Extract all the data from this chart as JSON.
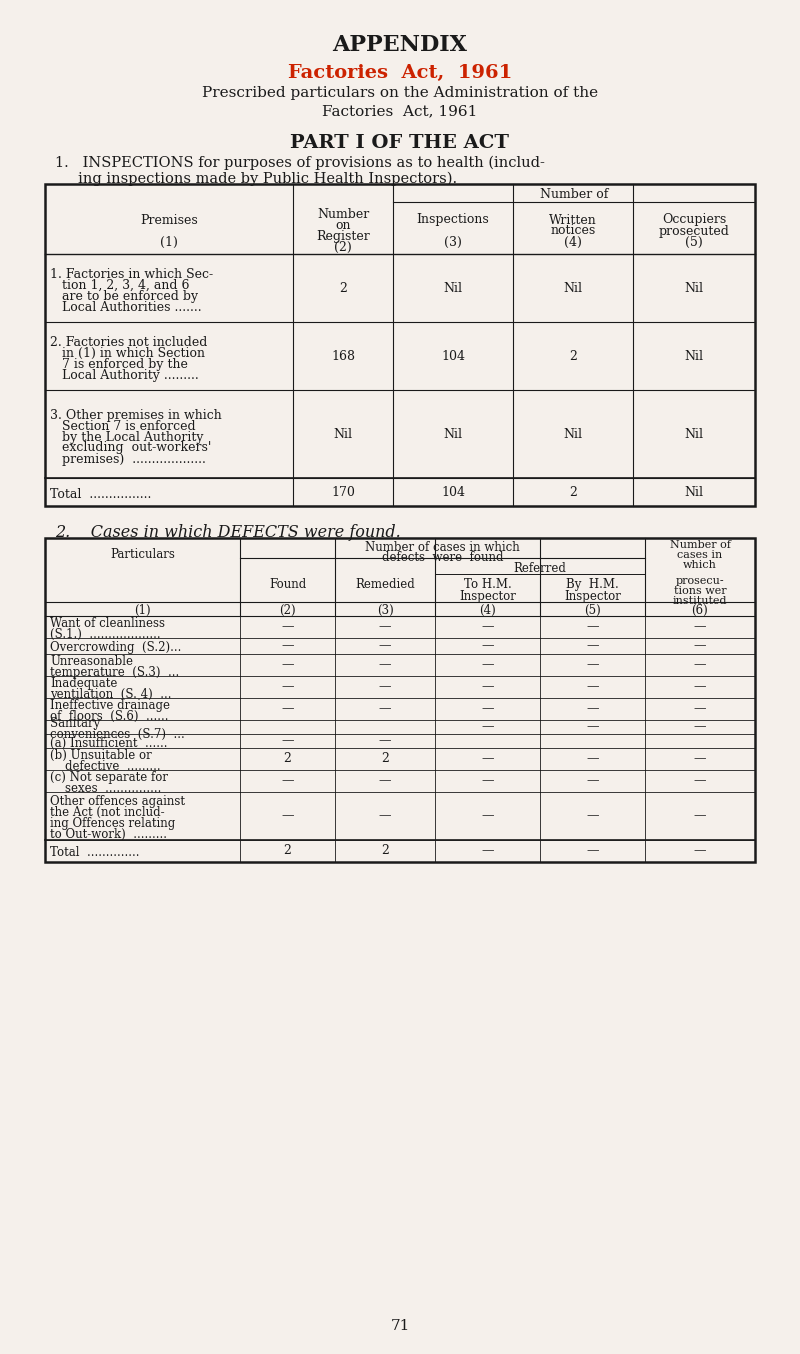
{
  "bg_color": "#f5f0eb",
  "text_color": "#1a1a1a",
  "red_color": "#cc2200",
  "title": "APPENDIX",
  "subtitle": "Factories  Act,  1961",
  "desc_line1": "Prescribed particulars on the Administration of the",
  "desc_line2": "Factories  Act, 1961",
  "part_title": "PART I OF THE ACT",
  "section1_title": "1.   INSPECTIONS for purposes of provisions as to health (includ-",
  "section1_title2": "     ing inspections made by Public Health Inspectors).",
  "table1_col_headers": [
    "Premises\n\n(1)",
    "Number\non\nRegister\n(2)",
    "Inspections\n\n(3)",
    "Written\nnotices\n(4)",
    "Occupiers\nprosecuted\n(5)"
  ],
  "table1_header_top": [
    "",
    "Number of",
    "Number of",
    "Number of",
    "Number of"
  ],
  "table1_rows": [
    [
      "1. Factories in which Sec-\n   tion 1, 2, 3, 4, and 6\n   are to be enforced by\n   Local Authorities .......",
      "2",
      "Nil",
      "Nil",
      "Nil"
    ],
    [
      "2. Factories not included\n   in (1) in which Section\n   7 is enforced by the\n   Local Authority .........",
      "168",
      "104",
      "2",
      "Nil"
    ],
    [
      "3. Other premises in which\n   Section 7 is enforced\n   by the Local Authority\n   excluding  out-workers'\n   premises)  ...................",
      "Nil",
      "Nil",
      "Nil",
      "Nil"
    ],
    [
      "Total  ................",
      "170",
      "104",
      "2",
      "Nil"
    ]
  ],
  "section2_title": "2.    Cases in which DEFECTS were found.",
  "table2_col_headers_top": [
    "Particulars\n\n(1)",
    "Number of cases in which defects were found",
    "Number of cases in which defects were found",
    "Number of cases in which defects were found",
    "Number of cases in which defects were found",
    "Number of\ncases in\nwhich\nprosecu-\ntions wer\ninstituted\n(6)"
  ],
  "table2_rows": [
    [
      "Want of cleanliness\n(S.1.)  ...................",
      "—",
      "—",
      "—",
      "—",
      "—"
    ],
    [
      "Overcrowding  (S.2)...",
      "—",
      "—",
      "—",
      "—",
      "—"
    ],
    [
      "Unreasonable\ntemperature  (S.3)  ...",
      "—",
      "—",
      "—",
      "—",
      "—"
    ],
    [
      "Inadequate\nventilation  (S. 4)  ...",
      "—",
      "—",
      "—",
      "—",
      "—"
    ],
    [
      "Ineffective drainage\nof  floors  (S.6)  ......",
      "—",
      "—",
      "—",
      "—",
      "—"
    ],
    [
      "Sanitary\nconveniences  (S.7)  ...",
      "",
      "",
      "—",
      "—",
      "—"
    ],
    [
      "(a) Insufficient  ......",
      "—",
      "—",
      "",
      "",
      ""
    ],
    [
      "(b) Unsuitable or\n    defective  .........",
      "2",
      "2",
      "—",
      "—",
      "—"
    ],
    [
      "(c) Not separate for\n    sexes  ...............",
      "—",
      "—",
      "—",
      "—",
      "—"
    ],
    [
      "Other offences against\nthe Act (not includ-\ning Offences relating\nto Out-work)  .........",
      "—",
      "—",
      "—",
      "—",
      "—"
    ],
    [
      "Total  ..............",
      "2",
      "2",
      "—",
      "—",
      "—"
    ]
  ],
  "page_num": "71"
}
